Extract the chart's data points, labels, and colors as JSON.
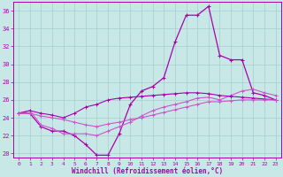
{
  "xlabel": "Windchill (Refroidissement éolien,°C)",
  "xlim_min": -0.5,
  "xlim_max": 23.5,
  "ylim_min": 19.5,
  "ylim_max": 37.0,
  "xticks": [
    0,
    1,
    2,
    3,
    4,
    5,
    6,
    7,
    8,
    9,
    10,
    11,
    12,
    13,
    14,
    15,
    16,
    17,
    18,
    19,
    20,
    21,
    22,
    23
  ],
  "yticks": [
    20,
    22,
    24,
    26,
    28,
    30,
    32,
    34,
    36
  ],
  "bg_color": "#c8e8e8",
  "grid_color": "#a8cccc",
  "color_dark": "#aa00aa",
  "color_light": "#cc55cc",
  "lineA_x": [
    0,
    1,
    2,
    3,
    4,
    5,
    6,
    7,
    8,
    9,
    10,
    11,
    12,
    13,
    14,
    15,
    16,
    17,
    18,
    19,
    20,
    21,
    22,
    23
  ],
  "lineA_y": [
    24.5,
    24.5,
    23.0,
    22.5,
    22.5,
    22.0,
    21.0,
    19.8,
    19.8,
    22.2,
    25.5,
    27.0,
    27.5,
    28.5,
    32.5,
    35.5,
    35.5,
    36.5,
    31.0,
    30.5,
    30.5,
    26.8,
    26.5,
    26.0
  ],
  "lineB_x": [
    0,
    1,
    2,
    3,
    4,
    5,
    6,
    7,
    8,
    9,
    10,
    11,
    12,
    13,
    14,
    15,
    16,
    17,
    18,
    19,
    20,
    21,
    22,
    23
  ],
  "lineB_y": [
    24.5,
    24.5,
    24.2,
    24.0,
    23.8,
    23.5,
    23.2,
    23.0,
    23.3,
    23.5,
    23.8,
    24.0,
    24.3,
    24.6,
    24.9,
    25.2,
    25.5,
    25.8,
    25.8,
    25.9,
    26.0,
    26.0,
    26.0,
    26.0
  ],
  "lineC_x": [
    0,
    1,
    2,
    3,
    4,
    5,
    6,
    7,
    8,
    9,
    10,
    11,
    12,
    13,
    14,
    15,
    16,
    17,
    18,
    19,
    20,
    21,
    22,
    23
  ],
  "lineC_y": [
    24.5,
    24.8,
    23.2,
    22.8,
    22.2,
    22.2,
    22.2,
    22.0,
    22.5,
    23.0,
    23.5,
    24.2,
    24.8,
    25.2,
    25.5,
    25.8,
    26.2,
    26.3,
    26.0,
    26.5,
    27.0,
    27.2,
    26.8,
    26.5
  ],
  "lineD_x": [
    0,
    1,
    2,
    3,
    4,
    5,
    6,
    7,
    8,
    9,
    10,
    11,
    12,
    13,
    14,
    15,
    16,
    17,
    18,
    19,
    20,
    21,
    22,
    23
  ],
  "lineD_y": [
    24.5,
    24.8,
    24.5,
    24.3,
    24.0,
    24.5,
    25.2,
    25.5,
    26.0,
    26.2,
    26.3,
    26.4,
    26.5,
    26.6,
    26.7,
    26.8,
    26.8,
    26.7,
    26.5,
    26.4,
    26.3,
    26.2,
    26.1,
    26.0
  ]
}
